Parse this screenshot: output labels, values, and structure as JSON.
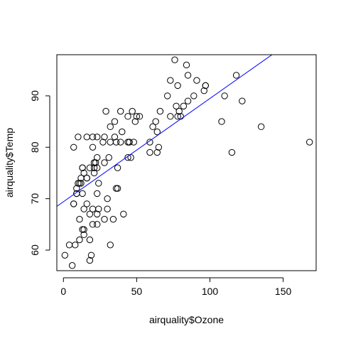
{
  "chart_data": {
    "type": "scatter",
    "xlabel": "airquality$Ozone",
    "ylabel": "airquality$Temp",
    "xlim": [
      -4.5,
      172.5
    ],
    "ylim": [
      56,
      98
    ],
    "xticks": [
      0,
      50,
      100,
      150
    ],
    "yticks": [
      60,
      70,
      80,
      90
    ],
    "grid": false,
    "box": true,
    "fit_line": {
      "intercept": 69.41,
      "slope": 0.2008,
      "color": "#0000ff"
    },
    "point_color": "#000000",
    "points": [
      [
        41,
        67
      ],
      [
        36,
        72
      ],
      [
        12,
        74
      ],
      [
        18,
        62
      ],
      [
        28,
        66
      ],
      [
        23,
        65
      ],
      [
        19,
        59
      ],
      [
        8,
        61
      ],
      [
        7,
        69
      ],
      [
        16,
        74
      ],
      [
        11,
        66
      ],
      [
        14,
        68
      ],
      [
        18,
        58
      ],
      [
        14,
        64
      ],
      [
        34,
        66
      ],
      [
        6,
        57
      ],
      [
        30,
        68
      ],
      [
        11,
        62
      ],
      [
        1,
        59
      ],
      [
        11,
        73
      ],
      [
        4,
        61
      ],
      [
        32,
        61
      ],
      [
        23,
        67
      ],
      [
        45,
        81
      ],
      [
        115,
        79
      ],
      [
        37,
        76
      ],
      [
        10,
        82
      ],
      [
        29,
        87
      ],
      [
        71,
        90
      ],
      [
        39,
        87
      ],
      [
        23,
        82
      ],
      [
        21,
        77
      ],
      [
        37,
        72
      ],
      [
        20,
        65
      ],
      [
        12,
        73
      ],
      [
        13,
        76
      ],
      [
        135,
        84
      ],
      [
        49,
        85
      ],
      [
        32,
        81
      ],
      [
        64,
        83
      ],
      [
        40,
        83
      ],
      [
        77,
        88
      ],
      [
        97,
        92
      ],
      [
        97,
        92
      ],
      [
        85,
        89
      ],
      [
        10,
        73
      ],
      [
        27,
        81
      ],
      [
        7,
        80
      ],
      [
        48,
        81
      ],
      [
        35,
        82
      ],
      [
        61,
        84
      ],
      [
        79,
        87
      ],
      [
        63,
        85
      ],
      [
        16,
        74
      ],
      [
        80,
        86
      ],
      [
        108,
        85
      ],
      [
        20,
        82
      ],
      [
        52,
        86
      ],
      [
        82,
        88
      ],
      [
        50,
        86
      ],
      [
        64,
        79
      ],
      [
        59,
        81
      ],
      [
        39,
        81
      ],
      [
        9,
        71
      ],
      [
        16,
        69
      ],
      [
        78,
        86
      ],
      [
        35,
        85
      ],
      [
        66,
        87
      ],
      [
        122,
        89
      ],
      [
        89,
        90
      ],
      [
        110,
        90
      ],
      [
        44,
        86
      ],
      [
        28,
        82
      ],
      [
        65,
        80
      ],
      [
        22,
        77
      ],
      [
        59,
        79
      ],
      [
        23,
        76
      ],
      [
        31,
        78
      ],
      [
        44,
        78
      ],
      [
        21,
        77
      ],
      [
        9,
        72
      ],
      [
        45,
        81
      ],
      [
        168,
        81
      ],
      [
        73,
        86
      ],
      [
        76,
        97
      ],
      [
        118,
        94
      ],
      [
        84,
        96
      ],
      [
        85,
        94
      ],
      [
        96,
        91
      ],
      [
        78,
        92
      ],
      [
        73,
        93
      ],
      [
        91,
        93
      ],
      [
        47,
        87
      ],
      [
        32,
        84
      ],
      [
        20,
        80
      ],
      [
        23,
        78
      ],
      [
        21,
        75
      ],
      [
        24,
        73
      ],
      [
        44,
        81
      ],
      [
        21,
        76
      ],
      [
        28,
        77
      ],
      [
        9,
        71
      ],
      [
        13,
        71
      ],
      [
        46,
        78
      ],
      [
        18,
        67
      ],
      [
        13,
        76
      ],
      [
        24,
        68
      ],
      [
        16,
        82
      ],
      [
        13,
        64
      ],
      [
        23,
        71
      ],
      [
        36,
        81
      ],
      [
        7,
        69
      ],
      [
        14,
        63
      ],
      [
        30,
        70
      ],
      [
        14,
        75
      ],
      [
        18,
        76
      ],
      [
        20,
        68
      ]
    ]
  }
}
